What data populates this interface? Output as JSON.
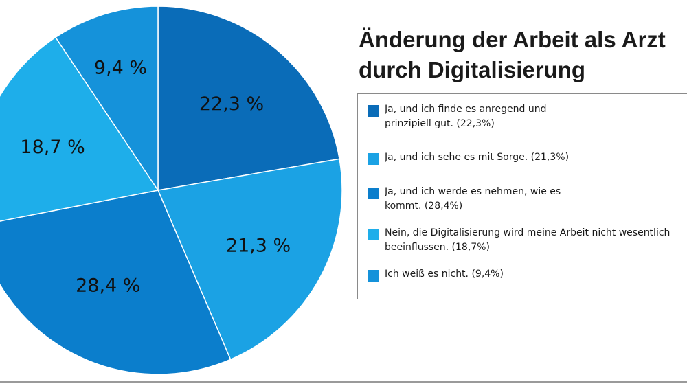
{
  "chart_data": {
    "type": "pie",
    "title": [
      "Änderung der Arbeit als Arzt",
      "durch Digitalisierung"
    ],
    "slices": [
      {
        "label_lines": [
          "Ja, und ich finde es anregend und",
          "prinzipiell gut. (22,3%)"
        ],
        "value": 22.3,
        "value_label": "22,3 %",
        "color": "#0a6cb8"
      },
      {
        "label_lines": [
          "Ja, und ich sehe es mit Sorge. (21,3%)"
        ],
        "value": 21.3,
        "value_label": "21,3 %",
        "color": "#1ba2e4"
      },
      {
        "label_lines": [
          "Ja, und ich werde es nehmen, wie es",
          "kommt. (28,4%)"
        ],
        "value": 28.4,
        "value_label": "28,4 %",
        "color": "#0b7ecc"
      },
      {
        "label_lines": [
          "Nein, die Digitalisierung wird meine Arbeit nicht wesentlich",
          "beeinflussen. (18,7%)"
        ],
        "value": 18.7,
        "value_label": "18,7 %",
        "color": "#1eaeea"
      },
      {
        "label_lines": [
          "Ich weiß es nicht. (9,4%)"
        ],
        "value": 9.4,
        "value_label": "9,4 %",
        "color": "#1592da"
      }
    ],
    "start_angle_deg": 0,
    "direction": "clockwise",
    "legend_position": "right"
  }
}
